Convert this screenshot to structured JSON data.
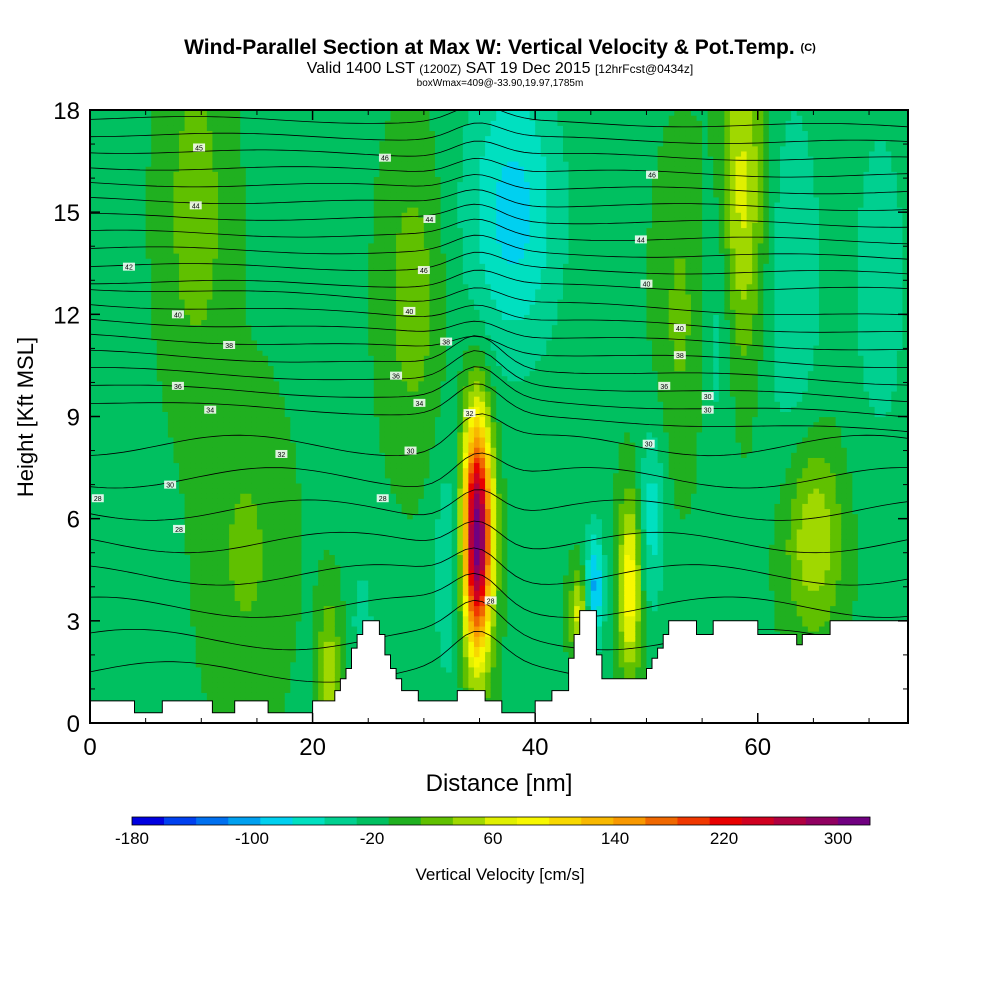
{
  "chart_data": {
    "type": "heatmap",
    "title": "Wind-Parallel Section at Max W: Vertical Velocity & Pot.Temp.",
    "title_mark": "(C)",
    "subtitle_main": "Valid 1400 LST",
    "subtitle_z": "(1200Z)",
    "subtitle_date": "SAT 19 Dec 2015",
    "subtitle_fcst": "[12hrFcst@0434z]",
    "subsubtitle": "boxWmax=409@-33.90,19.97,1785m",
    "xlabel": "Distance [nm]",
    "ylabel": "Height [Kft MSL]",
    "xlim": [
      0,
      73.5
    ],
    "ylim": [
      0,
      18
    ],
    "x_ticks": [
      0,
      20,
      40,
      60
    ],
    "y_ticks": [
      0,
      3,
      6,
      9,
      12,
      15,
      18
    ],
    "colorbar": {
      "label": "Vertical Velocity [cm/s]",
      "tick_labels": [
        "-180",
        "-100",
        "-20",
        "60",
        "140",
        "220",
        "300"
      ],
      "colors": [
        "#0000e0",
        "#0040f0",
        "#0070f0",
        "#00a0f0",
        "#00d0f0",
        "#00e0c0",
        "#00d090",
        "#00c060",
        "#20b020",
        "#60c000",
        "#a0d800",
        "#e0f000",
        "#f8f800",
        "#f8d800",
        "#f8b800",
        "#f89800",
        "#f06800",
        "#f03800",
        "#e80000",
        "#d00020",
        "#b00040",
        "#900060",
        "#700080"
      ]
    },
    "field": {
      "background_w": -10,
      "features": [
        {
          "name": "main-updraft",
          "x": 34.8,
          "y": 5.5,
          "w": 330,
          "sx": 0.9,
          "sy": 2.4
        },
        {
          "name": "updraft-48",
          "x": 48.5,
          "y": 4.0,
          "w": 110,
          "sx": 0.7,
          "sy": 1.8
        },
        {
          "name": "updraft-upper-58",
          "x": 58.5,
          "y": 15.5,
          "w": 80,
          "sx": 1.6,
          "sy": 3.5
        },
        {
          "name": "updraft-65",
          "x": 65.0,
          "y": 5.5,
          "w": 70,
          "sx": 1.8,
          "sy": 2.0
        },
        {
          "name": "updraft-44",
          "x": 44.0,
          "y": 3.2,
          "w": 80,
          "sx": 0.6,
          "sy": 0.9
        },
        {
          "name": "updraft-21",
          "x": 21.5,
          "y": 1.5,
          "w": 60,
          "sx": 0.7,
          "sy": 1.5
        },
        {
          "name": "weak-up-30",
          "x": 29.0,
          "y": 12.5,
          "w": 40,
          "sx": 1.8,
          "sy": 3.0
        },
        {
          "name": "weak-up-10",
          "x": 9.5,
          "y": 15.0,
          "w": 40,
          "sx": 2.0,
          "sy": 3.5
        },
        {
          "name": "weak-up-14",
          "x": 14.0,
          "y": 5.0,
          "w": 30,
          "sx": 2.5,
          "sy": 3.0
        },
        {
          "name": "weak-up-53",
          "x": 53.0,
          "y": 12.0,
          "w": 30,
          "sx": 1.5,
          "sy": 3.0
        },
        {
          "name": "down-38",
          "x": 38.0,
          "y": 15.0,
          "w": -70,
          "sx": 3.0,
          "sy": 3.0
        },
        {
          "name": "down-45",
          "x": 45.3,
          "y": 4.0,
          "w": -90,
          "sx": 0.6,
          "sy": 1.2
        },
        {
          "name": "down-32",
          "x": 32.3,
          "y": 4.5,
          "w": -40,
          "sx": 1.0,
          "sy": 2.5
        },
        {
          "name": "down-50",
          "x": 50.5,
          "y": 6.0,
          "w": -50,
          "sx": 0.8,
          "sy": 2.0
        },
        {
          "name": "down-57",
          "x": 56.5,
          "y": 12.5,
          "w": -40,
          "sx": 1.0,
          "sy": 3.5
        },
        {
          "name": "down-63",
          "x": 63.0,
          "y": 13.0,
          "w": -40,
          "sx": 2.0,
          "sy": 4.0
        },
        {
          "name": "down-25",
          "x": 24.5,
          "y": 3.0,
          "w": -40,
          "sx": 0.6,
          "sy": 1.0
        },
        {
          "name": "down-71",
          "x": 71.0,
          "y": 13.0,
          "w": -30,
          "sx": 2.0,
          "sy": 4.0
        }
      ]
    },
    "terrain": [
      {
        "x": 0,
        "h": 0.65
      },
      {
        "x": 3.5,
        "h": 0.65
      },
      {
        "x": 4.0,
        "h": 0.3
      },
      {
        "x": 6.0,
        "h": 0.3
      },
      {
        "x": 6.5,
        "h": 0.65
      },
      {
        "x": 10.5,
        "h": 0.65
      },
      {
        "x": 11.0,
        "h": 0.3
      },
      {
        "x": 12.5,
        "h": 0.3
      },
      {
        "x": 13.0,
        "h": 0.65
      },
      {
        "x": 15.5,
        "h": 0.65
      },
      {
        "x": 16.0,
        "h": 0.3
      },
      {
        "x": 19.5,
        "h": 0.3
      },
      {
        "x": 20.0,
        "h": 0.65
      },
      {
        "x": 21.5,
        "h": 0.65
      },
      {
        "x": 22.0,
        "h": 0.95
      },
      {
        "x": 22.5,
        "h": 1.3
      },
      {
        "x": 23.0,
        "h": 1.6
      },
      {
        "x": 23.5,
        "h": 2.2
      },
      {
        "x": 24.0,
        "h": 2.6
      },
      {
        "x": 24.5,
        "h": 3.0
      },
      {
        "x": 25.5,
        "h": 3.0
      },
      {
        "x": 26.0,
        "h": 2.6
      },
      {
        "x": 26.5,
        "h": 2.0
      },
      {
        "x": 27.0,
        "h": 1.6
      },
      {
        "x": 27.5,
        "h": 1.3
      },
      {
        "x": 28.0,
        "h": 0.95
      },
      {
        "x": 29.0,
        "h": 0.95
      },
      {
        "x": 29.5,
        "h": 0.65
      },
      {
        "x": 32.5,
        "h": 0.65
      },
      {
        "x": 33.0,
        "h": 0.95
      },
      {
        "x": 35.0,
        "h": 0.95
      },
      {
        "x": 35.5,
        "h": 0.65
      },
      {
        "x": 36.5,
        "h": 0.65
      },
      {
        "x": 37.0,
        "h": 0.3
      },
      {
        "x": 39.5,
        "h": 0.3
      },
      {
        "x": 40.0,
        "h": 0.65
      },
      {
        "x": 41.0,
        "h": 0.65
      },
      {
        "x": 41.5,
        "h": 0.95
      },
      {
        "x": 42.5,
        "h": 0.95
      },
      {
        "x": 43.0,
        "h": 1.9
      },
      {
        "x": 43.5,
        "h": 2.6
      },
      {
        "x": 44.0,
        "h": 3.3
      },
      {
        "x": 45.0,
        "h": 3.3
      },
      {
        "x": 45.5,
        "h": 2.0
      },
      {
        "x": 46.0,
        "h": 1.3
      },
      {
        "x": 49.5,
        "h": 1.3
      },
      {
        "x": 50.0,
        "h": 1.6
      },
      {
        "x": 50.5,
        "h": 1.9
      },
      {
        "x": 51.0,
        "h": 2.2
      },
      {
        "x": 51.5,
        "h": 2.6
      },
      {
        "x": 52.0,
        "h": 3.0
      },
      {
        "x": 54.0,
        "h": 3.0
      },
      {
        "x": 54.5,
        "h": 2.6
      },
      {
        "x": 55.5,
        "h": 2.6
      },
      {
        "x": 56.0,
        "h": 3.0
      },
      {
        "x": 59.5,
        "h": 3.0
      },
      {
        "x": 60.0,
        "h": 2.6
      },
      {
        "x": 63.0,
        "h": 2.6
      },
      {
        "x": 63.5,
        "h": 2.3
      },
      {
        "x": 64.0,
        "h": 2.6
      },
      {
        "x": 66.0,
        "h": 2.6
      },
      {
        "x": 66.5,
        "h": 3.0
      },
      {
        "x": 73.5,
        "h": 3.0
      }
    ],
    "theta_contours": {
      "base": 24,
      "step": 1,
      "count": 27
    },
    "contour_labels": [
      {
        "x": 9.8,
        "y": 16.9,
        "text": "45"
      },
      {
        "x": 26.5,
        "y": 16.6,
        "text": "46"
      },
      {
        "x": 50.5,
        "y": 16.1,
        "text": "46"
      },
      {
        "x": 9.5,
        "y": 15.2,
        "text": "44"
      },
      {
        "x": 30.5,
        "y": 14.8,
        "text": "44"
      },
      {
        "x": 49.5,
        "y": 14.2,
        "text": "44"
      },
      {
        "x": 3.5,
        "y": 13.4,
        "text": "42"
      },
      {
        "x": 30.0,
        "y": 13.3,
        "text": "46"
      },
      {
        "x": 50.0,
        "y": 12.9,
        "text": "40"
      },
      {
        "x": 7.9,
        "y": 12.0,
        "text": "40"
      },
      {
        "x": 28.7,
        "y": 12.1,
        "text": "40"
      },
      {
        "x": 53.0,
        "y": 11.6,
        "text": "40"
      },
      {
        "x": 12.5,
        "y": 11.1,
        "text": "38"
      },
      {
        "x": 32.0,
        "y": 11.2,
        "text": "38"
      },
      {
        "x": 53.0,
        "y": 10.8,
        "text": "38"
      },
      {
        "x": 7.9,
        "y": 9.9,
        "text": "36"
      },
      {
        "x": 27.5,
        "y": 10.2,
        "text": "36"
      },
      {
        "x": 51.6,
        "y": 9.9,
        "text": "36"
      },
      {
        "x": 10.8,
        "y": 9.2,
        "text": "34"
      },
      {
        "x": 29.6,
        "y": 9.4,
        "text": "34"
      },
      {
        "x": 55.5,
        "y": 9.6,
        "text": "30"
      },
      {
        "x": 34.1,
        "y": 9.1,
        "text": "32"
      },
      {
        "x": 55.5,
        "y": 9.2,
        "text": "30"
      },
      {
        "x": 17.2,
        "y": 7.9,
        "text": "32"
      },
      {
        "x": 28.8,
        "y": 8.0,
        "text": "30"
      },
      {
        "x": 50.2,
        "y": 8.2,
        "text": "30"
      },
      {
        "x": 7.2,
        "y": 7.0,
        "text": "30"
      },
      {
        "x": 0.7,
        "y": 6.6,
        "text": "28"
      },
      {
        "x": 26.3,
        "y": 6.6,
        "text": "28"
      },
      {
        "x": 8.0,
        "y": 5.7,
        "text": "28"
      },
      {
        "x": 36.0,
        "y": 3.6,
        "text": "28"
      }
    ]
  }
}
